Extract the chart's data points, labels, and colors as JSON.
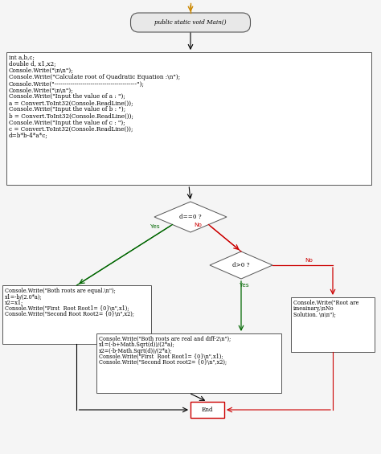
{
  "bg_color": "#f5f5f5",
  "arrow_color": "#000000",
  "orange_arrow": "#cc8800",
  "green_arrow": "#006600",
  "red_arrow": "#cc0000",
  "box_facecolor": "#ffffff",
  "box_edgecolor": "#555555",
  "diamond_facecolor": "#ffffff",
  "diamond_edgecolor": "#555555",
  "end_facecolor": "#ffffff",
  "end_edgecolor": "#cc0000",
  "terminal_facecolor": "#e8e8e8",
  "terminal_edgecolor": "#555555",
  "font_size": 5.2,
  "terminal_text": "public static void Main()",
  "process1_lines": [
    "int a,b,c;",
    "double d, x1,x2;",
    "Console.Write(\"\\n\\n\");",
    "Console.Write(\"Calculate root of Quadratic Equation :\\n\");",
    "Console.Write(\"-----------------------------------------\");",
    "Console.Write(\"\\n\\n\");",
    "Console.Write(\"Input the value of a : \");",
    "a = Convert.ToInt32(Console.ReadLine());",
    "Console.Write(\"Input the value of b : \");",
    "b = Convert.ToInt32(Console.ReadLine());",
    "Console.Write(\"Input the value of c : \");",
    "c = Convert.ToInt32(Console.ReadLine());",
    "d=b*b-4*a*c;"
  ],
  "diamond1_text": "d==0 ?",
  "diamond2_text": "d>0 ?",
  "yes1_label": "Yes",
  "no1_label": "No",
  "yes2_label": "Yes",
  "no2_label": "No",
  "process_left_lines": [
    "Console.Write(\"Both roots are equal.\\n\");",
    "x1=-b/(2.0*a);",
    "x2=x1;",
    "Console.Write(\"First  Root Root1= {0}\\n\",x1);",
    "Console.Write(\"Second Root Root2= {0}\\n\",x2);"
  ],
  "process_middle_lines": [
    "Console.Write(\"Both roots are real and diff-2\\n\");",
    "x1=(-b+Math.Sqrt(d))/(2*a);",
    "x2=(-b-Math.Sqrt(d))/(2*a);",
    "Console.Write(\"First  Root Root1= {0}\\n\",x1);",
    "Console.Write(\"Second Root root2= {0}\\n\",x2);"
  ],
  "process_right_lines": [
    "Console.Write(\"Root are",
    "imeainary,\\nNo",
    "Solution. \\n\\n\");"
  ],
  "end_text": "End"
}
